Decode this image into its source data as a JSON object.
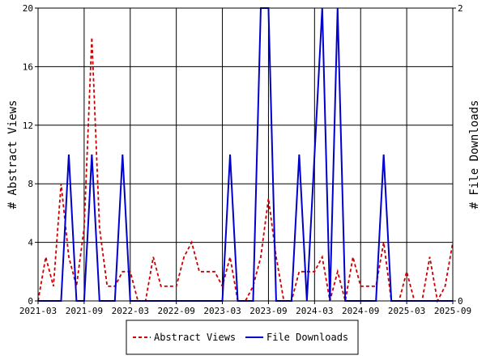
{
  "chart_data": {
    "type": "line",
    "x_ticks": [
      "2021-03",
      "2021-09",
      "2022-03",
      "2022-09",
      "2023-03",
      "2023-09",
      "2024-03",
      "2024-09",
      "2025-03",
      "2025-09"
    ],
    "y_left": {
      "label": "# Abstract Views",
      "min": 0,
      "max": 20,
      "ticks": [
        "0",
        "4",
        "8",
        "12",
        "16",
        "20"
      ]
    },
    "y_right": {
      "label": "# File Downloads",
      "min": 0,
      "max": 2,
      "ticks": [
        "0",
        "2"
      ]
    },
    "series": [
      {
        "name": "Abstract Views",
        "axis": "left",
        "color": "#cc0000",
        "style": "dashed",
        "points": [
          [
            "2021-03",
            0
          ],
          [
            "2021-04",
            3
          ],
          [
            "2021-05",
            1
          ],
          [
            "2021-06",
            8
          ],
          [
            "2021-07",
            3
          ],
          [
            "2021-08",
            1
          ],
          [
            "2021-09",
            5
          ],
          [
            "2021-10",
            18
          ],
          [
            "2021-11",
            5
          ],
          [
            "2021-12",
            1
          ],
          [
            "2022-01",
            1
          ],
          [
            "2022-02",
            2
          ],
          [
            "2022-03",
            2
          ],
          [
            "2022-04",
            0
          ],
          [
            "2022-05",
            0
          ],
          [
            "2022-06",
            3
          ],
          [
            "2022-07",
            1
          ],
          [
            "2022-08",
            1
          ],
          [
            "2022-09",
            1
          ],
          [
            "2022-10",
            3
          ],
          [
            "2022-11",
            4
          ],
          [
            "2022-12",
            2
          ],
          [
            "2023-01",
            2
          ],
          [
            "2023-02",
            2
          ],
          [
            "2023-03",
            1
          ],
          [
            "2023-04",
            3
          ],
          [
            "2023-05",
            0
          ],
          [
            "2023-06",
            0
          ],
          [
            "2023-07",
            1
          ],
          [
            "2023-08",
            3
          ],
          [
            "2023-09",
            7
          ],
          [
            "2023-10",
            3
          ],
          [
            "2023-11",
            0
          ],
          [
            "2023-12",
            0
          ],
          [
            "2024-01",
            2
          ],
          [
            "2024-02",
            2
          ],
          [
            "2024-03",
            2
          ],
          [
            "2024-04",
            3
          ],
          [
            "2024-05",
            0
          ],
          [
            "2024-06",
            2
          ],
          [
            "2024-07",
            0
          ],
          [
            "2024-08",
            3
          ],
          [
            "2024-09",
            1
          ],
          [
            "2024-10",
            1
          ],
          [
            "2024-11",
            1
          ],
          [
            "2024-12",
            4
          ],
          [
            "2025-01",
            0
          ],
          [
            "2025-02",
            0
          ],
          [
            "2025-03",
            2
          ],
          [
            "2025-04",
            0
          ],
          [
            "2025-05",
            0
          ],
          [
            "2025-06",
            3
          ],
          [
            "2025-07",
            0
          ],
          [
            "2025-08",
            1
          ],
          [
            "2025-09",
            4
          ]
        ]
      },
      {
        "name": "File Downloads",
        "axis": "right",
        "color": "#0000cc",
        "style": "solid",
        "points": [
          [
            "2021-03",
            0
          ],
          [
            "2021-04",
            0
          ],
          [
            "2021-05",
            0
          ],
          [
            "2021-06",
            0
          ],
          [
            "2021-07",
            1
          ],
          [
            "2021-08",
            0
          ],
          [
            "2021-09",
            0
          ],
          [
            "2021-10",
            1
          ],
          [
            "2021-11",
            0
          ],
          [
            "2021-12",
            0
          ],
          [
            "2022-01",
            0
          ],
          [
            "2022-02",
            1
          ],
          [
            "2022-03",
            0
          ],
          [
            "2022-04",
            0
          ],
          [
            "2022-05",
            0
          ],
          [
            "2022-06",
            0
          ],
          [
            "2022-07",
            0
          ],
          [
            "2022-08",
            0
          ],
          [
            "2022-09",
            0
          ],
          [
            "2022-10",
            0
          ],
          [
            "2022-11",
            0
          ],
          [
            "2022-12",
            0
          ],
          [
            "2023-01",
            0
          ],
          [
            "2023-02",
            0
          ],
          [
            "2023-03",
            0
          ],
          [
            "2023-04",
            1
          ],
          [
            "2023-05",
            0
          ],
          [
            "2023-06",
            0
          ],
          [
            "2023-07",
            0
          ],
          [
            "2023-08",
            2
          ],
          [
            "2023-09",
            2
          ],
          [
            "2023-10",
            0
          ],
          [
            "2023-11",
            0
          ],
          [
            "2023-12",
            0
          ],
          [
            "2024-01",
            1
          ],
          [
            "2024-02",
            0
          ],
          [
            "2024-03",
            1
          ],
          [
            "2024-04",
            2
          ],
          [
            "2024-05",
            0
          ],
          [
            "2024-06",
            2
          ],
          [
            "2024-07",
            0
          ],
          [
            "2024-08",
            0
          ],
          [
            "2024-09",
            0
          ],
          [
            "2024-10",
            0
          ],
          [
            "2024-11",
            0
          ],
          [
            "2024-12",
            1
          ],
          [
            "2025-01",
            0
          ],
          [
            "2025-02",
            0
          ],
          [
            "2025-03",
            0
          ],
          [
            "2025-04",
            0
          ],
          [
            "2025-05",
            0
          ],
          [
            "2025-06",
            0
          ],
          [
            "2025-07",
            0
          ],
          [
            "2025-08",
            0
          ],
          [
            "2025-09",
            0
          ]
        ]
      }
    ],
    "legend": {
      "placement": "bottom-center",
      "entries": [
        "Abstract Views",
        "File Downloads"
      ]
    },
    "grid": true
  }
}
